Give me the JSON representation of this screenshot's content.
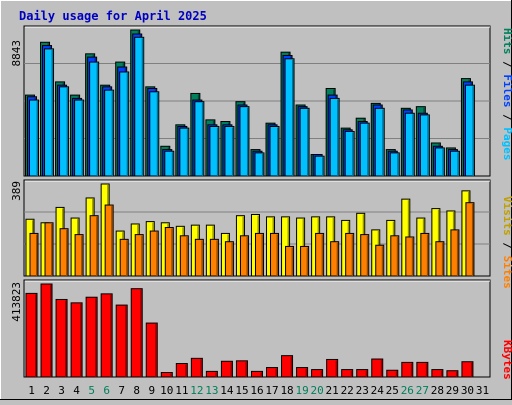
{
  "chart_data": [
    {
      "type": "bar",
      "title": "Daily usage for April 2025",
      "ylabel_parts": [
        "Pages",
        "Files",
        "Hits"
      ],
      "ymax_label": "8843",
      "ylim": [
        0,
        8843
      ],
      "categories": [
        "1",
        "2",
        "3",
        "4",
        "5",
        "6",
        "7",
        "8",
        "9",
        "10",
        "11",
        "12",
        "13",
        "14",
        "15",
        "16",
        "17",
        "18",
        "19",
        "20",
        "21",
        "22",
        "23",
        "24",
        "25",
        "26",
        "27",
        "28",
        "29",
        "30",
        "31"
      ],
      "weekend_days": [
        "5",
        "6",
        "12",
        "13",
        "19",
        "20",
        "26",
        "27"
      ],
      "series": [
        {
          "name": "Hits",
          "values": [
            4900,
            8100,
            5700,
            4900,
            7400,
            5500,
            6900,
            8843,
            5400,
            1800,
            3100,
            5000,
            3400,
            3300,
            4500,
            1600,
            3200,
            7500,
            4300,
            1300,
            5300,
            2900,
            3500,
            4400,
            1600,
            4100,
            4200,
            2000,
            1700,
            5900,
            0
          ]
        },
        {
          "name": "Files",
          "values": [
            4800,
            7900,
            5500,
            4700,
            7200,
            5400,
            6600,
            8600,
            5300,
            1600,
            3000,
            4600,
            3100,
            3100,
            4300,
            1500,
            3100,
            7300,
            4200,
            1300,
            4900,
            2800,
            3300,
            4300,
            1500,
            4000,
            3800,
            1800,
            1600,
            5700,
            0
          ]
        },
        {
          "name": "Pages",
          "values": [
            4600,
            7700,
            5400,
            4600,
            6900,
            5200,
            6300,
            8400,
            5100,
            1500,
            2900,
            4500,
            3000,
            3000,
            4200,
            1400,
            3000,
            7100,
            4100,
            1200,
            4700,
            2700,
            3200,
            4100,
            1400,
            3800,
            3700,
            1700,
            1500,
            5500,
            0
          ]
        }
      ]
    },
    {
      "type": "bar",
      "ylabel_parts": [
        "Sites",
        "Visits"
      ],
      "ymax_label": "389",
      "ylim": [
        0,
        389
      ],
      "categories": [
        "1",
        "2",
        "3",
        "4",
        "5",
        "6",
        "7",
        "8",
        "9",
        "10",
        "11",
        "12",
        "13",
        "14",
        "15",
        "16",
        "17",
        "18",
        "19",
        "20",
        "21",
        "22",
        "23",
        "24",
        "25",
        "26",
        "27",
        "28",
        "29",
        "30",
        "31"
      ],
      "series": [
        {
          "name": "Visits",
          "values": [
            240,
            225,
            290,
            245,
            330,
            389,
            190,
            220,
            230,
            225,
            210,
            215,
            215,
            180,
            255,
            260,
            250,
            250,
            245,
            250,
            250,
            235,
            265,
            195,
            235,
            325,
            245,
            285,
            275,
            360,
            0
          ]
        },
        {
          "name": "Sites",
          "values": [
            180,
            225,
            200,
            175,
            255,
            300,
            155,
            175,
            190,
            205,
            170,
            155,
            155,
            145,
            170,
            180,
            180,
            125,
            125,
            180,
            145,
            180,
            175,
            130,
            170,
            165,
            180,
            145,
            195,
            310,
            0
          ]
        }
      ]
    },
    {
      "type": "bar",
      "ylabel_parts": [
        "KBytes"
      ],
      "ymax_label": "413823",
      "ylim": [
        0,
        413823
      ],
      "categories": [
        "1",
        "2",
        "3",
        "4",
        "5",
        "6",
        "7",
        "8",
        "9",
        "10",
        "11",
        "12",
        "13",
        "14",
        "15",
        "16",
        "17",
        "18",
        "19",
        "20",
        "21",
        "22",
        "23",
        "24",
        "25",
        "26",
        "27",
        "28",
        "29",
        "30",
        "31"
      ],
      "series": [
        {
          "name": "KBytes",
          "values": [
            372000,
            413823,
            345000,
            330000,
            355000,
            370000,
            320000,
            393000,
            240000,
            20000,
            60000,
            83000,
            25000,
            70000,
            72000,
            25000,
            42000,
            95000,
            42000,
            33000,
            78000,
            33000,
            33000,
            80000,
            30000,
            65000,
            65000,
            33000,
            28000,
            68000,
            0
          ]
        }
      ]
    }
  ],
  "colors": {
    "background": "#c0c0c0",
    "title": "#0000c0",
    "hits": "#00805c",
    "files": "#0040ff",
    "pages": "#00c0ff",
    "visits": "#ffff00",
    "sites": "#ff8000",
    "kbytes": "#ff0000",
    "slash": "#000000",
    "weekday_label": "#000000",
    "weekend_label": "#00805c"
  }
}
